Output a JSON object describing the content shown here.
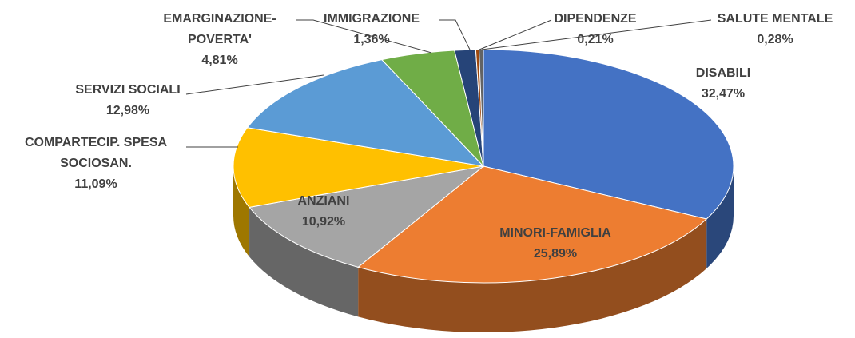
{
  "chart_data": {
    "type": "pie3d",
    "categories": [
      "DISABILI",
      "MINORI-FAMIGLIA",
      "ANZIANI",
      "COMPARTECIP. SPESA SOCIOSAN.",
      "SERVIZI SOCIALI",
      "EMARGINAZIONE-POVERTA'",
      "IMMIGRAZIONE",
      "DIPENDENZE",
      "SALUTE MENTALE"
    ],
    "values": [
      32.47,
      25.89,
      10.92,
      11.09,
      12.98,
      4.81,
      1.36,
      0.21,
      0.28
    ],
    "value_labels": [
      "32,47%",
      "25,89%",
      "10,92%",
      "11,09%",
      "12,98%",
      "4,81%",
      "1,36%",
      "0,21%",
      "0,28%"
    ],
    "colors": [
      "#4472c4",
      "#ed7d31",
      "#a5a5a5",
      "#ffc000",
      "#5b9bd5",
      "#70ad47",
      "#264478",
      "#9e480e",
      "#636363"
    ]
  }
}
